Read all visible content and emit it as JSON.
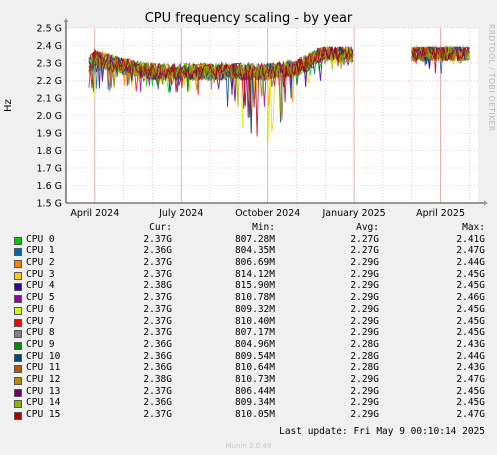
{
  "title": "CPU frequency scaling - by year",
  "watermark": "RRDTOOL / TOBI OETIKER",
  "chart_data": {
    "type": "line",
    "title": "CPU frequency scaling - by year",
    "ylabel": "Hz",
    "ylim": [
      1.5,
      2.5
    ],
    "y_ticks": [
      "1.5 G",
      "1.6 G",
      "1.7 G",
      "1.8 G",
      "1.9 G",
      "2.0 G",
      "2.1 G",
      "2.2 G",
      "2.3 G",
      "2.4 G",
      "2.5 G"
    ],
    "x_ticks": [
      "April 2024",
      "July 2024",
      "October 2024",
      "January 2025",
      "April 2025"
    ],
    "grid": true,
    "series_per_cpu": 16,
    "approx_envelope": {
      "x_months": [
        "2024-03",
        "2024-04",
        "2024-05",
        "2024-06",
        "2024-07",
        "2024-08",
        "2024-09",
        "2024-10",
        "2024-11",
        "2024-12",
        "2025-01",
        "2025-02",
        "2025-03",
        "2025-04",
        "2025-05"
      ],
      "typical": [
        2.1,
        2.33,
        2.28,
        2.25,
        2.25,
        2.25,
        2.25,
        2.25,
        2.27,
        2.36,
        2.35,
        null,
        2.36,
        2.36,
        2.36
      ],
      "min": [
        1.92,
        2.1,
        2.15,
        2.12,
        2.12,
        2.1,
        1.95,
        1.77,
        2.12,
        2.2,
        2.3,
        null,
        2.31,
        2.21,
        2.33
      ]
    }
  },
  "legend": {
    "header": {
      "cur": "Cur:",
      "min": "Min:",
      "avg": "Avg:",
      "max": "Max:"
    },
    "rows": [
      {
        "name": "CPU 0",
        "color": "#00cc00",
        "cur": "2.37G",
        "min": "807.28M",
        "avg": "2.27G",
        "max": "2.41G"
      },
      {
        "name": "CPU 1",
        "color": "#0066b3",
        "cur": "2.36G",
        "min": "804.35M",
        "avg": "2.27G",
        "max": "2.47G"
      },
      {
        "name": "CPU 2",
        "color": "#ff8000",
        "cur": "2.37G",
        "min": "806.69M",
        "avg": "2.29G",
        "max": "2.44G"
      },
      {
        "name": "CPU 3",
        "color": "#ffcc00",
        "cur": "2.37G",
        "min": "814.12M",
        "avg": "2.29G",
        "max": "2.45G"
      },
      {
        "name": "CPU 4",
        "color": "#330099",
        "cur": "2.38G",
        "min": "815.90M",
        "avg": "2.29G",
        "max": "2.45G"
      },
      {
        "name": "CPU 5",
        "color": "#990099",
        "cur": "2.37G",
        "min": "810.78M",
        "avg": "2.29G",
        "max": "2.46G"
      },
      {
        "name": "CPU 6",
        "color": "#ccff00",
        "cur": "2.37G",
        "min": "809.32M",
        "avg": "2.29G",
        "max": "2.45G"
      },
      {
        "name": "CPU 7",
        "color": "#ff0000",
        "cur": "2.37G",
        "min": "810.40M",
        "avg": "2.29G",
        "max": "2.45G"
      },
      {
        "name": "CPU 8",
        "color": "#808080",
        "cur": "2.37G",
        "min": "807.17M",
        "avg": "2.29G",
        "max": "2.45G"
      },
      {
        "name": "CPU 9",
        "color": "#008f00",
        "cur": "2.36G",
        "min": "804.96M",
        "avg": "2.28G",
        "max": "2.43G"
      },
      {
        "name": "CPU 10",
        "color": "#00487d",
        "cur": "2.36G",
        "min": "809.54M",
        "avg": "2.28G",
        "max": "2.44G"
      },
      {
        "name": "CPU 11",
        "color": "#b35a00",
        "cur": "2.36G",
        "min": "810.64M",
        "avg": "2.28G",
        "max": "2.43G"
      },
      {
        "name": "CPU 12",
        "color": "#b38f00",
        "cur": "2.38G",
        "min": "810.73M",
        "avg": "2.29G",
        "max": "2.47G"
      },
      {
        "name": "CPU 13",
        "color": "#6b006b",
        "cur": "2.37G",
        "min": "806.44M",
        "avg": "2.29G",
        "max": "2.45G"
      },
      {
        "name": "CPU 14",
        "color": "#8fb300",
        "cur": "2.36G",
        "min": "809.34M",
        "avg": "2.29G",
        "max": "2.45G"
      },
      {
        "name": "CPU 15",
        "color": "#b30000",
        "cur": "2.37G",
        "min": "810.05M",
        "avg": "2.29G",
        "max": "2.47G"
      }
    ]
  },
  "last_update": "Last update: Fri May  9 00:10:14 2025",
  "footer": "Munin 2.0.49"
}
